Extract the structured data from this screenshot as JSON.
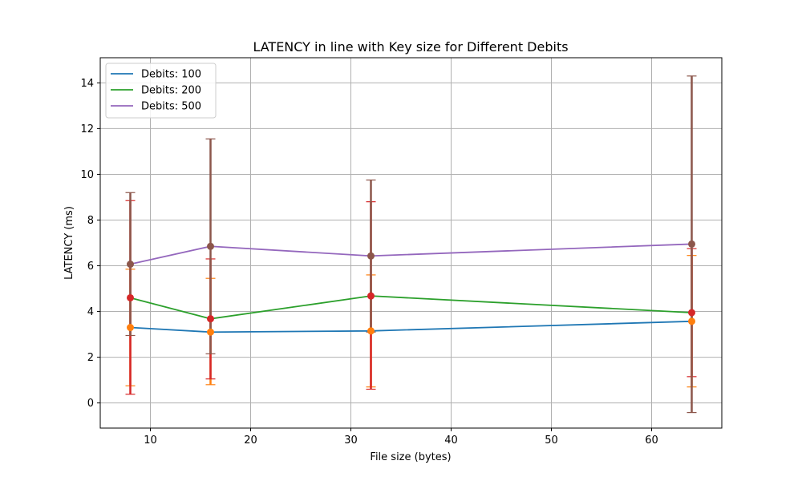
{
  "chart_data": {
    "type": "line",
    "title": "LATENCY in line with Key size for Different Debits",
    "xlabel": "File size (bytes)",
    "ylabel": "LATENCY (ms)",
    "xlim": [
      5,
      67
    ],
    "ylim": [
      -1.1,
      15.1
    ],
    "xticks": [
      10,
      20,
      30,
      40,
      50,
      60
    ],
    "yticks": [
      0,
      2,
      4,
      6,
      8,
      10,
      12,
      14
    ],
    "grid": true,
    "legend_position": "top-left",
    "x": [
      8,
      16,
      32,
      64
    ],
    "series": [
      {
        "name": "Debits: 100",
        "color": "#1f77b4",
        "marker_color": "#ff7f0e",
        "values": [
          3.3,
          3.1,
          3.15,
          3.57
        ],
        "err_low": [
          0.75,
          0.8,
          0.7,
          0.7
        ],
        "err_high": [
          5.85,
          5.45,
          5.6,
          6.45
        ]
      },
      {
        "name": "Debits: 200",
        "color": "#2ca02c",
        "marker_color": "#d62728",
        "values": [
          4.6,
          3.68,
          4.68,
          3.95
        ],
        "err_low": [
          0.38,
          1.05,
          0.6,
          1.15
        ],
        "err_high": [
          8.85,
          6.3,
          8.8,
          6.75
        ]
      },
      {
        "name": "Debits: 500",
        "color": "#9467bd",
        "marker_color": "#8c564b",
        "values": [
          6.07,
          6.85,
          6.43,
          6.95
        ],
        "err_low": [
          2.95,
          2.15,
          3.1,
          -0.42
        ],
        "err_high": [
          9.2,
          11.55,
          9.75,
          14.3
        ]
      }
    ]
  }
}
